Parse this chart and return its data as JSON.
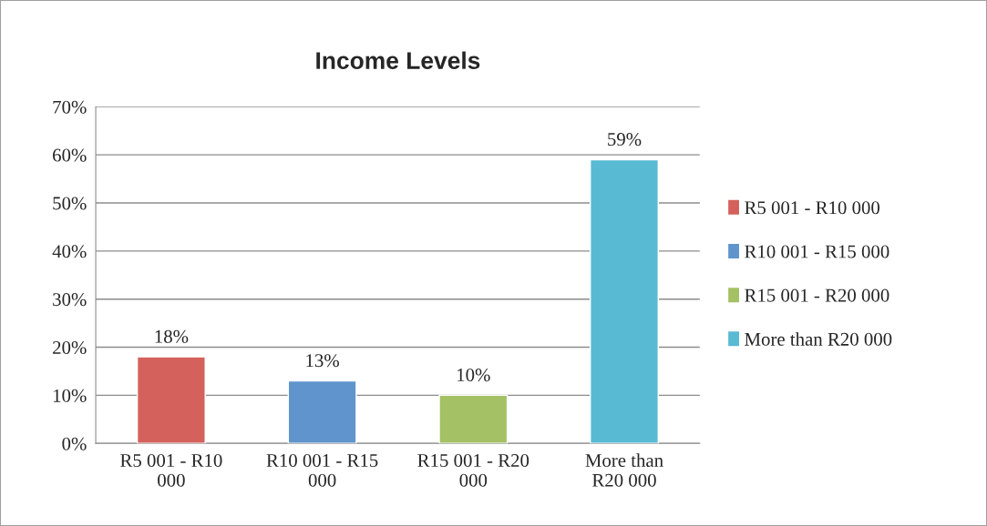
{
  "chart_data": {
    "type": "bar",
    "title": "Income Levels",
    "categories": [
      "R5 001 - R10\n000",
      "R10 001 - R15\n000",
      "R15 001 - R20\n000",
      "More than\nR20 000"
    ],
    "series": [
      {
        "name": "R5 001 - R10 000",
        "color": "#d4615c",
        "values": [
          18,
          null,
          null,
          null
        ],
        "value_labels": [
          "18%",
          null,
          null,
          null
        ]
      },
      {
        "name": "R10 001 - R15 000",
        "color": "#5f95cc",
        "values": [
          null,
          13,
          null,
          null
        ],
        "value_labels": [
          null,
          "13%",
          null,
          null
        ]
      },
      {
        "name": "R15 001 - R20 000",
        "color": "#a4c165",
        "values": [
          null,
          null,
          10,
          null
        ],
        "value_labels": [
          null,
          null,
          "10%",
          null
        ]
      },
      {
        "name": "More than R20 000",
        "color": "#58bad3",
        "values": [
          null,
          null,
          null,
          59
        ],
        "value_labels": [
          null,
          null,
          null,
          "59%"
        ]
      }
    ],
    "ylim": [
      0,
      70
    ],
    "yticks": [
      {
        "value": 0,
        "label": "0%"
      },
      {
        "value": 10,
        "label": "10%"
      },
      {
        "value": 20,
        "label": "20%"
      },
      {
        "value": 30,
        "label": "30%"
      },
      {
        "value": 40,
        "label": "40%"
      },
      {
        "value": 50,
        "label": "50%"
      },
      {
        "value": 60,
        "label": "60%"
      },
      {
        "value": 70,
        "label": "70%"
      }
    ],
    "grid": "y",
    "legend": "right"
  }
}
